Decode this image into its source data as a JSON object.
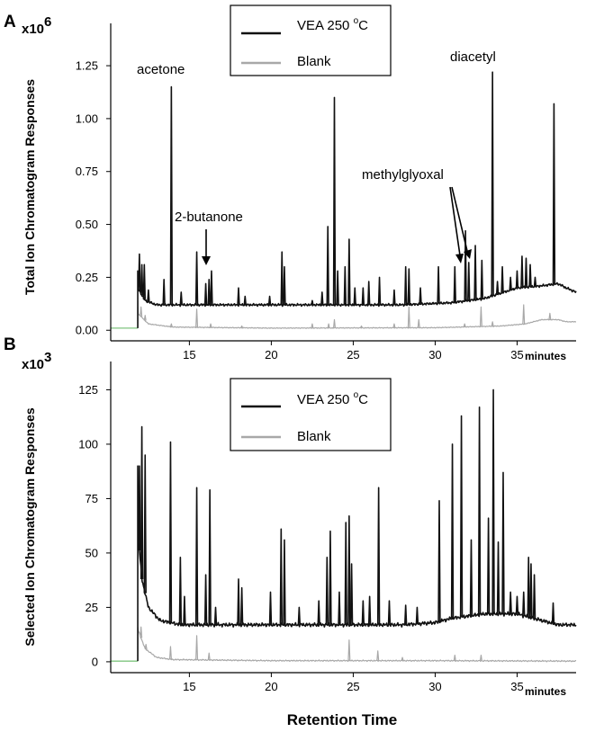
{
  "chart_data": [
    {
      "panel": "A",
      "type": "line",
      "ylabel": "Total Ion Chromatogram Responses",
      "y_exponent_label": "x10",
      "y_exponent_power": "6",
      "x_units": "minutes",
      "ylim": [
        -0.05,
        1.45
      ],
      "xlim": [
        10.2,
        38.6
      ],
      "y_ticks": [
        "0.00",
        "0.25",
        "0.50",
        "0.75",
        "1.00",
        "1.25"
      ],
      "y_tick_values": [
        0.0,
        0.25,
        0.5,
        0.75,
        1.0,
        1.25
      ],
      "x_ticks": [
        "15",
        "20",
        "25",
        "30",
        "35"
      ],
      "x_tick_values": [
        15,
        20,
        25,
        30,
        35
      ],
      "legend": {
        "placement": "top-center",
        "entries": [
          {
            "label": "VEA 250 ",
            "superscript": "o",
            "suffix": "C",
            "color": "#111111"
          },
          {
            "label": "Blank",
            "superscript": "",
            "suffix": "",
            "color": "#a8a8a8"
          }
        ]
      },
      "annotations": {
        "acetone": "acetone",
        "butanone": "2-butanone",
        "methylglyoxal": "methylglyoxal",
        "diacetyl": "diacetyl"
      },
      "series": [
        {
          "name": "VEA 250 oC",
          "color": "#111111",
          "start": 11.85,
          "start_level": 0.28,
          "baseline_points": [
            [
              11.85,
              0.2
            ],
            [
              12.3,
              0.14
            ],
            [
              13,
              0.12
            ],
            [
              20,
              0.12
            ],
            [
              28,
              0.12
            ],
            [
              31,
              0.13
            ],
            [
              33,
              0.15
            ],
            [
              35,
              0.2
            ],
            [
              36.5,
              0.21
            ],
            [
              37.5,
              0.22
            ],
            [
              38,
              0.2
            ],
            [
              38.6,
              0.18
            ]
          ],
          "peaks": [
            [
              11.95,
              0.36
            ],
            [
              12.1,
              0.31
            ],
            [
              12.25,
              0.31
            ],
            [
              12.5,
              0.19
            ],
            [
              13.45,
              0.24
            ],
            [
              13.9,
              1.15
            ],
            [
              14.5,
              0.18
            ],
            [
              15.45,
              0.37
            ],
            [
              16.0,
              0.22
            ],
            [
              16.2,
              0.24
            ],
            [
              16.35,
              0.28
            ],
            [
              18.0,
              0.2
            ],
            [
              18.4,
              0.16
            ],
            [
              19.9,
              0.16
            ],
            [
              20.65,
              0.37
            ],
            [
              20.8,
              0.3
            ],
            [
              22.5,
              0.14
            ],
            [
              23.1,
              0.18
            ],
            [
              23.45,
              0.49
            ],
            [
              23.85,
              1.1
            ],
            [
              24.05,
              0.28
            ],
            [
              24.5,
              0.3
            ],
            [
              24.75,
              0.43
            ],
            [
              25.1,
              0.2
            ],
            [
              25.6,
              0.2
            ],
            [
              25.95,
              0.23
            ],
            [
              26.6,
              0.25
            ],
            [
              27.5,
              0.19
            ],
            [
              28.2,
              0.3
            ],
            [
              28.4,
              0.29
            ],
            [
              29.1,
              0.2
            ],
            [
              30.2,
              0.3
            ],
            [
              31.2,
              0.3
            ],
            [
              31.85,
              0.47
            ],
            [
              32.05,
              0.32
            ],
            [
              32.45,
              0.4
            ],
            [
              32.85,
              0.33
            ],
            [
              33.5,
              1.22
            ],
            [
              33.8,
              0.23
            ],
            [
              34.1,
              0.3
            ],
            [
              34.6,
              0.25
            ],
            [
              35.0,
              0.28
            ],
            [
              35.3,
              0.35
            ],
            [
              35.55,
              0.34
            ],
            [
              35.8,
              0.31
            ],
            [
              36.1,
              0.25
            ],
            [
              37.25,
              1.07
            ]
          ]
        },
        {
          "name": "Blank",
          "color": "#a8a8a8",
          "start": 11.85,
          "start_level": 0.14,
          "baseline_points": [
            [
              11.85,
              0.08
            ],
            [
              12.5,
              0.03
            ],
            [
              14,
              0.015
            ],
            [
              20,
              0.01
            ],
            [
              30,
              0.012
            ],
            [
              34,
              0.02
            ],
            [
              35.5,
              0.03
            ],
            [
              36.5,
              0.05
            ],
            [
              37.5,
              0.05
            ],
            [
              38,
              0.04
            ],
            [
              38.6,
              0.04
            ]
          ],
          "peaks": [
            [
              12.05,
              0.11
            ],
            [
              12.3,
              0.07
            ],
            [
              13.9,
              0.03
            ],
            [
              15.45,
              0.1
            ],
            [
              16.3,
              0.03
            ],
            [
              18.2,
              0.02
            ],
            [
              22.5,
              0.03
            ],
            [
              23.5,
              0.03
            ],
            [
              23.85,
              0.05
            ],
            [
              25.5,
              0.02
            ],
            [
              27.5,
              0.03
            ],
            [
              28.4,
              0.11
            ],
            [
              29.0,
              0.05
            ],
            [
              31.8,
              0.03
            ],
            [
              32.8,
              0.11
            ],
            [
              33.5,
              0.04
            ],
            [
              35.4,
              0.12
            ],
            [
              37.0,
              0.08
            ]
          ]
        }
      ]
    },
    {
      "panel": "B",
      "type": "line",
      "ylabel": "Selected Ion Chromatogram Responses",
      "xlabel": "Retention Time",
      "y_exponent_label": "x10",
      "y_exponent_power": "3",
      "x_units": "minutes",
      "ylim": [
        -5,
        138
      ],
      "xlim": [
        10.2,
        38.6
      ],
      "y_ticks": [
        "0",
        "25",
        "50",
        "75",
        "100",
        "125"
      ],
      "y_tick_values": [
        0,
        25,
        50,
        75,
        100,
        125
      ],
      "x_ticks": [
        "15",
        "20",
        "25",
        "30",
        "35"
      ],
      "x_tick_values": [
        15,
        20,
        25,
        30,
        35
      ],
      "legend": {
        "placement": "top-center",
        "entries": [
          {
            "label": "VEA 250 ",
            "superscript": "o",
            "suffix": "C",
            "color": "#111111"
          },
          {
            "label": "Blank",
            "superscript": "",
            "suffix": "",
            "color": "#a8a8a8"
          }
        ]
      },
      "series": [
        {
          "name": "VEA 250 oC",
          "color": "#111111",
          "start": 11.85,
          "start_level": 90,
          "baseline_points": [
            [
              11.85,
              60
            ],
            [
              12.1,
              38
            ],
            [
              12.5,
              25
            ],
            [
              13.2,
              19
            ],
            [
              14.5,
              17
            ],
            [
              20,
              17
            ],
            [
              28,
              17
            ],
            [
              30,
              18
            ],
            [
              31,
              20
            ],
            [
              33,
              22
            ],
            [
              35,
              22
            ],
            [
              36.5,
              19
            ],
            [
              37.5,
              17
            ],
            [
              38.6,
              17
            ]
          ],
          "peaks": [
            [
              11.95,
              90
            ],
            [
              12.1,
              108
            ],
            [
              12.3,
              95
            ],
            [
              13.85,
              101
            ],
            [
              14.45,
              48
            ],
            [
              14.7,
              30
            ],
            [
              15.45,
              80
            ],
            [
              16.0,
              40
            ],
            [
              16.25,
              79
            ],
            [
              16.6,
              25
            ],
            [
              18.0,
              38
            ],
            [
              18.2,
              34
            ],
            [
              19.95,
              32
            ],
            [
              20.6,
              61
            ],
            [
              20.8,
              56
            ],
            [
              21.7,
              25
            ],
            [
              22.9,
              28
            ],
            [
              23.4,
              48
            ],
            [
              23.6,
              60
            ],
            [
              24.15,
              32
            ],
            [
              24.55,
              64
            ],
            [
              24.75,
              67
            ],
            [
              24.9,
              45
            ],
            [
              25.6,
              28
            ],
            [
              26.0,
              30
            ],
            [
              26.55,
              80
            ],
            [
              27.2,
              28
            ],
            [
              28.2,
              26
            ],
            [
              28.9,
              25
            ],
            [
              30.25,
              74
            ],
            [
              31.05,
              100
            ],
            [
              31.6,
              113
            ],
            [
              32.2,
              56
            ],
            [
              32.7,
              117
            ],
            [
              33.25,
              66
            ],
            [
              33.55,
              125
            ],
            [
              33.85,
              55
            ],
            [
              34.15,
              87
            ],
            [
              34.6,
              32
            ],
            [
              35.0,
              30
            ],
            [
              35.4,
              32
            ],
            [
              35.7,
              48
            ],
            [
              35.85,
              45
            ],
            [
              36.05,
              40
            ],
            [
              37.2,
              27
            ]
          ]
        },
        {
          "name": "Blank",
          "color": "#a8a8a8",
          "start": 11.85,
          "start_level": 16,
          "baseline_points": [
            [
              11.85,
              15
            ],
            [
              12.3,
              6
            ],
            [
              13,
              2
            ],
            [
              14,
              1
            ],
            [
              20,
              0.5
            ],
            [
              30,
              0.5
            ],
            [
              38.6,
              0.3
            ]
          ],
          "peaks": [
            [
              12.05,
              16
            ],
            [
              12.35,
              8
            ],
            [
              13.85,
              7
            ],
            [
              15.45,
              12
            ],
            [
              16.2,
              4
            ],
            [
              24.75,
              10
            ],
            [
              26.5,
              5
            ],
            [
              28.0,
              2
            ],
            [
              31.2,
              3
            ],
            [
              32.8,
              3
            ]
          ]
        }
      ]
    }
  ]
}
